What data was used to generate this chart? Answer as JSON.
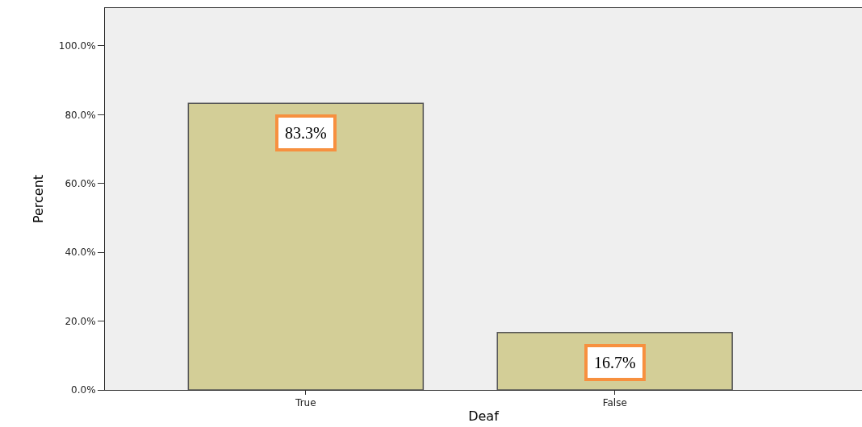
{
  "chart_data": {
    "type": "bar",
    "xlabel": "Deaf",
    "ylabel": "Percent",
    "categories": [
      "True",
      "False"
    ],
    "values": [
      83.3,
      16.7
    ],
    "value_labels": [
      "83.3%",
      "16.7%"
    ],
    "color": "#d3ce97",
    "ylim": [
      0,
      111
    ],
    "yticks": [
      {
        "value": 0,
        "label": "0.0%"
      },
      {
        "value": 20,
        "label": "20.0%"
      },
      {
        "value": 40,
        "label": "40.0%"
      },
      {
        "value": 60,
        "label": "60.0%"
      },
      {
        "value": 80,
        "label": "80.0%"
      },
      {
        "value": 100,
        "label": "100.0%"
      }
    ],
    "grid": false
  }
}
